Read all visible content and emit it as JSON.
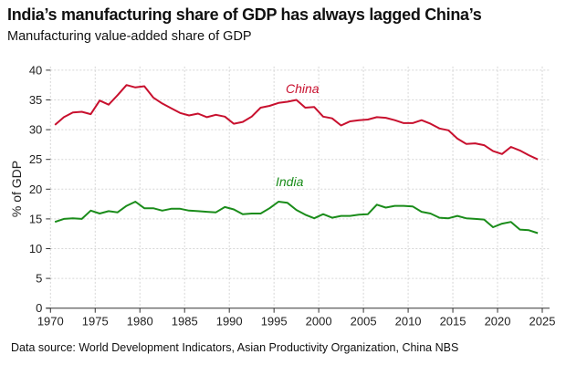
{
  "title": "India’s manufacturing share of GDP has always lagged China’s",
  "subtitle": "Manufacturing value-added share of GDP",
  "source": "Data source: World Development Indicators, Asian Productivity Organization, China NBS",
  "chart_data": {
    "type": "line",
    "title": "India’s manufacturing share of GDP has always lagged China’s",
    "subtitle": "Manufacturing value-added share of GDP",
    "xlabel": "",
    "ylabel": "% of GDP",
    "xlim": [
      1970,
      2025
    ],
    "ylim": [
      0,
      40
    ],
    "xticks": [
      1970,
      1975,
      1980,
      1985,
      1990,
      1995,
      2000,
      2005,
      2010,
      2015,
      2020,
      2025
    ],
    "yticks": [
      0,
      5,
      10,
      15,
      20,
      25,
      30,
      35,
      40
    ],
    "grid": true,
    "legend": "inline labels",
    "x": [
      1970,
      1971,
      1972,
      1973,
      1974,
      1975,
      1976,
      1977,
      1978,
      1979,
      1980,
      1981,
      1982,
      1983,
      1984,
      1985,
      1986,
      1987,
      1988,
      1989,
      1990,
      1991,
      1992,
      1993,
      1994,
      1995,
      1996,
      1997,
      1998,
      1999,
      2000,
      2001,
      2002,
      2003,
      2004,
      2005,
      2006,
      2007,
      2008,
      2009,
      2010,
      2011,
      2012,
      2013,
      2014,
      2015,
      2016,
      2017,
      2018,
      2019,
      2020,
      2021,
      2022,
      2023,
      2024
    ],
    "series": [
      {
        "name": "China",
        "color": "#c8102e",
        "values": [
          30.8,
          32.1,
          32.9,
          33.0,
          32.6,
          34.9,
          34.2,
          35.8,
          37.5,
          37.1,
          37.3,
          35.4,
          34.4,
          33.6,
          32.8,
          32.4,
          32.7,
          32.1,
          32.5,
          32.2,
          31.0,
          31.3,
          32.2,
          33.7,
          34.0,
          34.5,
          34.7,
          35.0,
          33.7,
          33.8,
          32.2,
          31.9,
          30.7,
          31.4,
          31.6,
          31.7,
          32.1,
          32.0,
          31.6,
          31.1,
          31.1,
          31.6,
          31.0,
          30.2,
          29.9,
          28.5,
          27.6,
          27.7,
          27.4,
          26.4,
          25.9,
          27.1,
          26.5,
          25.7,
          25.0
        ]
      },
      {
        "name": "India",
        "color": "#1a8c1a",
        "values": [
          14.5,
          15.0,
          15.1,
          15.0,
          16.4,
          15.9,
          16.3,
          16.1,
          17.2,
          17.9,
          16.8,
          16.8,
          16.4,
          16.7,
          16.7,
          16.4,
          16.3,
          16.2,
          16.1,
          17.0,
          16.6,
          15.8,
          15.9,
          15.9,
          16.8,
          17.9,
          17.7,
          16.5,
          15.7,
          15.1,
          15.8,
          15.2,
          15.5,
          15.5,
          15.7,
          15.8,
          17.4,
          16.9,
          17.2,
          17.2,
          17.1,
          16.2,
          15.9,
          15.2,
          15.1,
          15.5,
          15.1,
          15.0,
          14.9,
          13.6,
          14.2,
          14.5,
          13.2,
          13.1,
          12.6
        ]
      }
    ]
  }
}
